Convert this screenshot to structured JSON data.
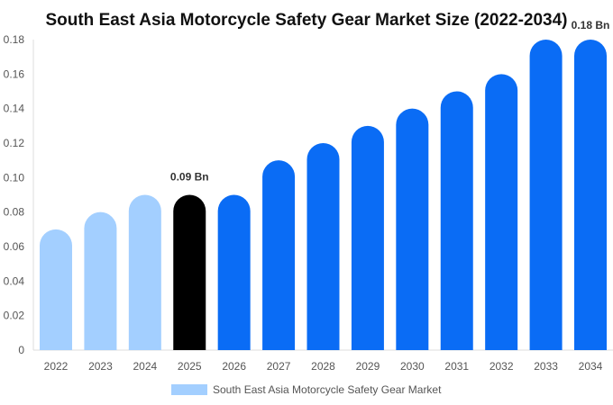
{
  "chart_data": {
    "type": "bar",
    "title": "South East Asia Motorcycle Safety Gear Market Size (2022-2034)",
    "xlabel": "",
    "ylabel": "",
    "categories": [
      "2022",
      "2023",
      "2024",
      "2025",
      "2026",
      "2027",
      "2028",
      "2029",
      "2030",
      "2031",
      "2032",
      "2033",
      "2034"
    ],
    "series": [
      {
        "name": "South East Asia Motorcycle Safety Gear Market",
        "values": [
          0.07,
          0.08,
          0.09,
          0.09,
          0.09,
          0.11,
          0.12,
          0.13,
          0.14,
          0.15,
          0.16,
          0.18,
          0.18
        ]
      }
    ],
    "ylim": [
      0,
      0.18
    ],
    "yticks": [
      "0",
      "0.02",
      "0.04",
      "0.06",
      "0.08",
      "0.10",
      "0.12",
      "0.14",
      "0.16",
      "0.18"
    ],
    "data_labels": [
      {
        "category": "2025",
        "text": "0.09 Bn"
      },
      {
        "category": "2034",
        "text": "0.18 Bn"
      }
    ],
    "bar_colors": [
      "#a3cfff",
      "#a3cfff",
      "#a3cfff",
      "#000000",
      "#0a6cf5",
      "#0a6cf5",
      "#0a6cf5",
      "#0a6cf5",
      "#0a6cf5",
      "#0a6cf5",
      "#0a6cf5",
      "#0a6cf5",
      "#0a6cf5"
    ],
    "legend_color": "#a3cfff",
    "grid": false,
    "legend_position": "bottom"
  }
}
